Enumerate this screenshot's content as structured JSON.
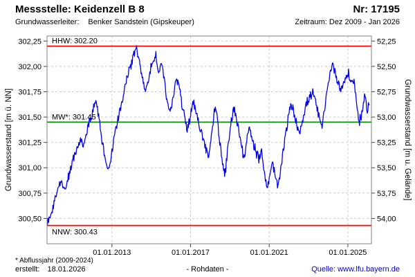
{
  "header": {
    "title": "Messstelle: Keidenzell B 8",
    "number": "Nr: 17195",
    "aquifer_label": "Grundwasserleiter:",
    "aquifer_value": "Benker Sandstein (Gipskeuper)",
    "period": "Zeitraum: Dez 2009 - Jan 2026"
  },
  "footer": {
    "note": "* Abflussjahr (2009-2024)",
    "created_label": "erstellt:",
    "created_date": "18.01.2026",
    "center": "- Rohdaten -",
    "source": "Quelle: www.lfu.bayern.de"
  },
  "colors": {
    "series": "#0000ee",
    "extreme_line": "#ff0000",
    "mean_line": "#009000",
    "grid": "#c9c9c9",
    "border": "#808080",
    "tick": "#404040",
    "link": "#0000cc",
    "text": "#000000"
  },
  "chart_data": {
    "type": "line",
    "title": "",
    "xlabel": "",
    "ylabel_left": "Grundwasserstand [m ü. NN]",
    "ylabel_right": "Grundwasserstand [m u. Gelände]",
    "xlim": [
      2009.7,
      2026.2
    ],
    "ylim_left": [
      300.25,
      302.3
    ],
    "grid": true,
    "legend": "none",
    "x_axis_ticks": [
      {
        "year": 2013.0,
        "label": "01.01.2013"
      },
      {
        "year": 2017.0,
        "label": "01.01.2017"
      },
      {
        "year": 2021.0,
        "label": "01.01.2021"
      },
      {
        "year": 2025.0,
        "label": "01.01.2025"
      }
    ],
    "y_axis_left_ticks": [
      {
        "value": 302.25,
        "label": "302,25"
      },
      {
        "value": 302.0,
        "label": "302,00"
      },
      {
        "value": 301.75,
        "label": "301,75"
      },
      {
        "value": 301.5,
        "label": "301,50"
      },
      {
        "value": 301.25,
        "label": "301,25"
      },
      {
        "value": 301.0,
        "label": "301,00"
      },
      {
        "value": 300.75,
        "label": "300,75"
      },
      {
        "value": 300.5,
        "label": "300,50"
      }
    ],
    "y_axis_right_ticks": [
      {
        "depth": 52.25,
        "at_left_value": 302.25,
        "label": "52,25"
      },
      {
        "depth": 52.5,
        "at_left_value": 302.0,
        "label": "52,50"
      },
      {
        "depth": 52.75,
        "at_left_value": 301.75,
        "label": "52,75"
      },
      {
        "depth": 53.0,
        "at_left_value": 301.5,
        "label": "53,00"
      },
      {
        "depth": 53.25,
        "at_left_value": 301.25,
        "label": "53,25"
      },
      {
        "depth": 53.5,
        "at_left_value": 301.0,
        "label": "53,50"
      },
      {
        "depth": 53.75,
        "at_left_value": 300.75,
        "label": "53,75"
      },
      {
        "depth": 54.0,
        "at_left_value": 300.5,
        "label": "54,00"
      }
    ],
    "reference_lines": [
      {
        "name": "hhw",
        "label": "HHW: 302.20",
        "value": 302.2,
        "color": "#ff0000",
        "label_position": "above"
      },
      {
        "name": "mw",
        "label": "MW*: 301.45",
        "value": 301.45,
        "color": "#009000",
        "label_position": "above"
      },
      {
        "name": "nnw",
        "label": "NNW: 300.43",
        "value": 300.43,
        "color": "#ff0000",
        "label_position": "below"
      }
    ],
    "series": [
      {
        "name": "Grundwasserstand Rohdaten",
        "color": "#0000ee",
        "points": [
          [
            2009.72,
            300.45
          ],
          [
            2009.85,
            300.52
          ],
          [
            2009.99,
            300.6
          ],
          [
            2010.13,
            300.72
          ],
          [
            2010.27,
            300.82
          ],
          [
            2010.44,
            300.9
          ],
          [
            2010.58,
            300.76
          ],
          [
            2010.72,
            300.84
          ],
          [
            2010.86,
            300.96
          ],
          [
            2011.03,
            301.08
          ],
          [
            2011.21,
            301.18
          ],
          [
            2011.38,
            301.28
          ],
          [
            2011.55,
            301.24
          ],
          [
            2011.73,
            301.38
          ],
          [
            2011.94,
            301.5
          ],
          [
            2012.11,
            301.6
          ],
          [
            2012.21,
            301.65
          ],
          [
            2012.32,
            301.52
          ],
          [
            2012.46,
            301.3
          ],
          [
            2012.6,
            301.16
          ],
          [
            2012.73,
            301.04
          ],
          [
            2012.84,
            300.99
          ],
          [
            2012.98,
            301.15
          ],
          [
            2013.15,
            301.35
          ],
          [
            2013.33,
            301.5
          ],
          [
            2013.5,
            301.64
          ],
          [
            2013.67,
            301.8
          ],
          [
            2013.88,
            301.96
          ],
          [
            2014.09,
            302.1
          ],
          [
            2014.26,
            302.18
          ],
          [
            2014.37,
            302.08
          ],
          [
            2014.51,
            301.93
          ],
          [
            2014.68,
            301.75
          ],
          [
            2014.82,
            301.85
          ],
          [
            2014.96,
            301.97
          ],
          [
            2015.1,
            302.05
          ],
          [
            2015.24,
            302.1
          ],
          [
            2015.38,
            301.95
          ],
          [
            2015.52,
            302.04
          ],
          [
            2015.65,
            301.88
          ],
          [
            2015.79,
            301.66
          ],
          [
            2015.93,
            301.55
          ],
          [
            2016.04,
            301.64
          ],
          [
            2016.14,
            301.72
          ],
          [
            2016.28,
            301.88
          ],
          [
            2016.42,
            301.8
          ],
          [
            2016.56,
            301.64
          ],
          [
            2016.7,
            301.48
          ],
          [
            2016.84,
            301.38
          ],
          [
            2016.97,
            301.5
          ],
          [
            2017.11,
            301.65
          ],
          [
            2017.29,
            301.55
          ],
          [
            2017.43,
            301.42
          ],
          [
            2017.57,
            301.33
          ],
          [
            2017.74,
            301.22
          ],
          [
            2017.91,
            301.12
          ],
          [
            2018.09,
            301.35
          ],
          [
            2018.26,
            301.63
          ],
          [
            2018.4,
            301.42
          ],
          [
            2018.54,
            301.15
          ],
          [
            2018.64,
            301.0
          ],
          [
            2018.75,
            300.92
          ],
          [
            2018.89,
            301.18
          ],
          [
            2019.06,
            301.45
          ],
          [
            2019.2,
            301.58
          ],
          [
            2019.34,
            301.48
          ],
          [
            2019.48,
            301.36
          ],
          [
            2019.69,
            301.1
          ],
          [
            2019.86,
            301.26
          ],
          [
            2020.0,
            301.4
          ],
          [
            2020.17,
            301.25
          ],
          [
            2020.35,
            301.14
          ],
          [
            2020.49,
            301.07
          ],
          [
            2020.62,
            301.18
          ],
          [
            2020.76,
            300.95
          ],
          [
            2020.9,
            300.8
          ],
          [
            2021.04,
            300.92
          ],
          [
            2021.18,
            301.05
          ],
          [
            2021.32,
            300.9
          ],
          [
            2021.46,
            300.8
          ],
          [
            2021.63,
            301.05
          ],
          [
            2021.81,
            301.3
          ],
          [
            2021.98,
            301.5
          ],
          [
            2022.12,
            301.63
          ],
          [
            2022.26,
            301.55
          ],
          [
            2022.4,
            301.42
          ],
          [
            2022.54,
            301.36
          ],
          [
            2022.71,
            301.48
          ],
          [
            2022.88,
            301.62
          ],
          [
            2023.06,
            301.7
          ],
          [
            2023.23,
            301.73
          ],
          [
            2023.4,
            301.62
          ],
          [
            2023.54,
            301.48
          ],
          [
            2023.68,
            301.4
          ],
          [
            2023.86,
            301.62
          ],
          [
            2024.03,
            301.88
          ],
          [
            2024.2,
            302.03
          ],
          [
            2024.38,
            301.92
          ],
          [
            2024.55,
            301.82
          ],
          [
            2024.69,
            301.78
          ],
          [
            2024.86,
            301.88
          ],
          [
            2025.04,
            301.93
          ],
          [
            2025.18,
            301.83
          ],
          [
            2025.31,
            301.87
          ],
          [
            2025.45,
            301.62
          ],
          [
            2025.59,
            301.45
          ],
          [
            2025.73,
            301.55
          ],
          [
            2025.87,
            301.7
          ],
          [
            2025.98,
            301.58
          ],
          [
            2026.11,
            301.65
          ]
        ]
      }
    ]
  }
}
